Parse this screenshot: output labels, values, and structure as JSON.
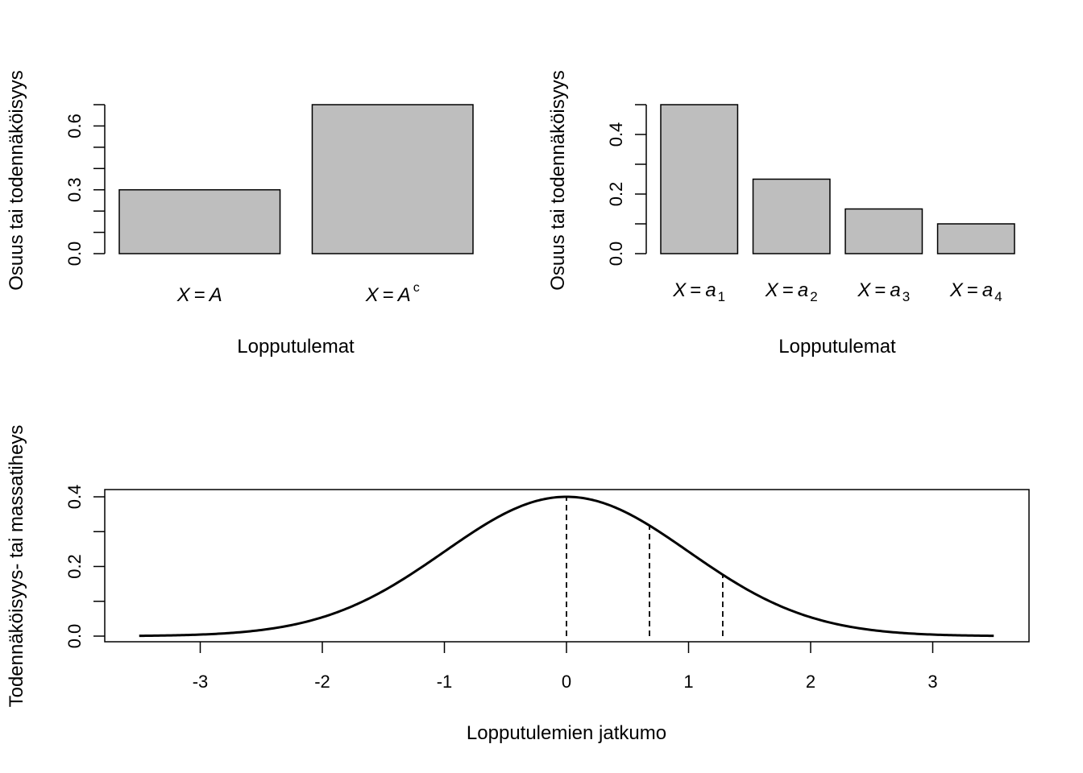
{
  "chart_data": [
    {
      "type": "bar",
      "categories": [
        {
          "base": "X",
          "eq": "=",
          "rhs": "A",
          "sub": "",
          "sup": ""
        },
        {
          "base": "X",
          "eq": "=",
          "rhs": "A",
          "sub": "",
          "sup": "c"
        }
      ],
      "values": [
        0.3,
        0.7
      ],
      "ylim": [
        0,
        0.7
      ],
      "yticks": [
        0.0,
        0.1,
        0.2,
        0.3,
        0.4,
        0.5,
        0.6,
        0.7
      ],
      "ytick_labels": [
        {
          "value": 0.0,
          "label": "0.0"
        },
        {
          "value": 0.3,
          "label": "0.3"
        },
        {
          "value": 0.6,
          "label": "0.6"
        }
      ],
      "xlabel": "Lopputulemat",
      "ylabel": "Osuus tai todennäköisyys",
      "bar_color": "#bebebe"
    },
    {
      "type": "bar",
      "categories": [
        {
          "base": "X",
          "eq": "=",
          "rhs": "a",
          "sub": "1",
          "sup": ""
        },
        {
          "base": "X",
          "eq": "=",
          "rhs": "a",
          "sub": "2",
          "sup": ""
        },
        {
          "base": "X",
          "eq": "=",
          "rhs": "a",
          "sub": "3",
          "sup": ""
        },
        {
          "base": "X",
          "eq": "=",
          "rhs": "a",
          "sub": "4",
          "sup": ""
        }
      ],
      "values": [
        0.5,
        0.25,
        0.15,
        0.1
      ],
      "ylim": [
        0,
        0.5
      ],
      "yticks": [
        0.0,
        0.1,
        0.2,
        0.3,
        0.4,
        0.5
      ],
      "ytick_labels": [
        {
          "value": 0.0,
          "label": "0.0"
        },
        {
          "value": 0.2,
          "label": "0.2"
        },
        {
          "value": 0.4,
          "label": "0.4"
        }
      ],
      "xlabel": "Lopputulemat",
      "ylabel": "Osuus tai todennäköisyys",
      "bar_color": "#bebebe"
    },
    {
      "type": "line",
      "function": "standard normal density",
      "xrange": [
        -3.5,
        3.5
      ],
      "xlim": [
        -3.78,
        3.78
      ],
      "ylim": [
        0,
        0.3989
      ],
      "xticks": [
        {
          "value": -3,
          "label": "-3"
        },
        {
          "value": -2,
          "label": "-2"
        },
        {
          "value": -1,
          "label": "-1"
        },
        {
          "value": 0,
          "label": "0"
        },
        {
          "value": 1,
          "label": "1"
        },
        {
          "value": 2,
          "label": "2"
        },
        {
          "value": 3,
          "label": "3"
        }
      ],
      "yticks": [
        0.0,
        0.1,
        0.2,
        0.3,
        0.4
      ],
      "ytick_labels": [
        {
          "value": 0.0,
          "label": "0.0"
        },
        {
          "value": 0.2,
          "label": "0.2"
        },
        {
          "value": 0.4,
          "label": "0.4"
        }
      ],
      "dashed_lines_at_x": [
        0,
        0.68,
        1.28
      ],
      "xlabel": "Lopputulemien jatkumo",
      "ylabel": "Todennäköisyys- tai massatiheys",
      "line_color": "#000000"
    }
  ]
}
